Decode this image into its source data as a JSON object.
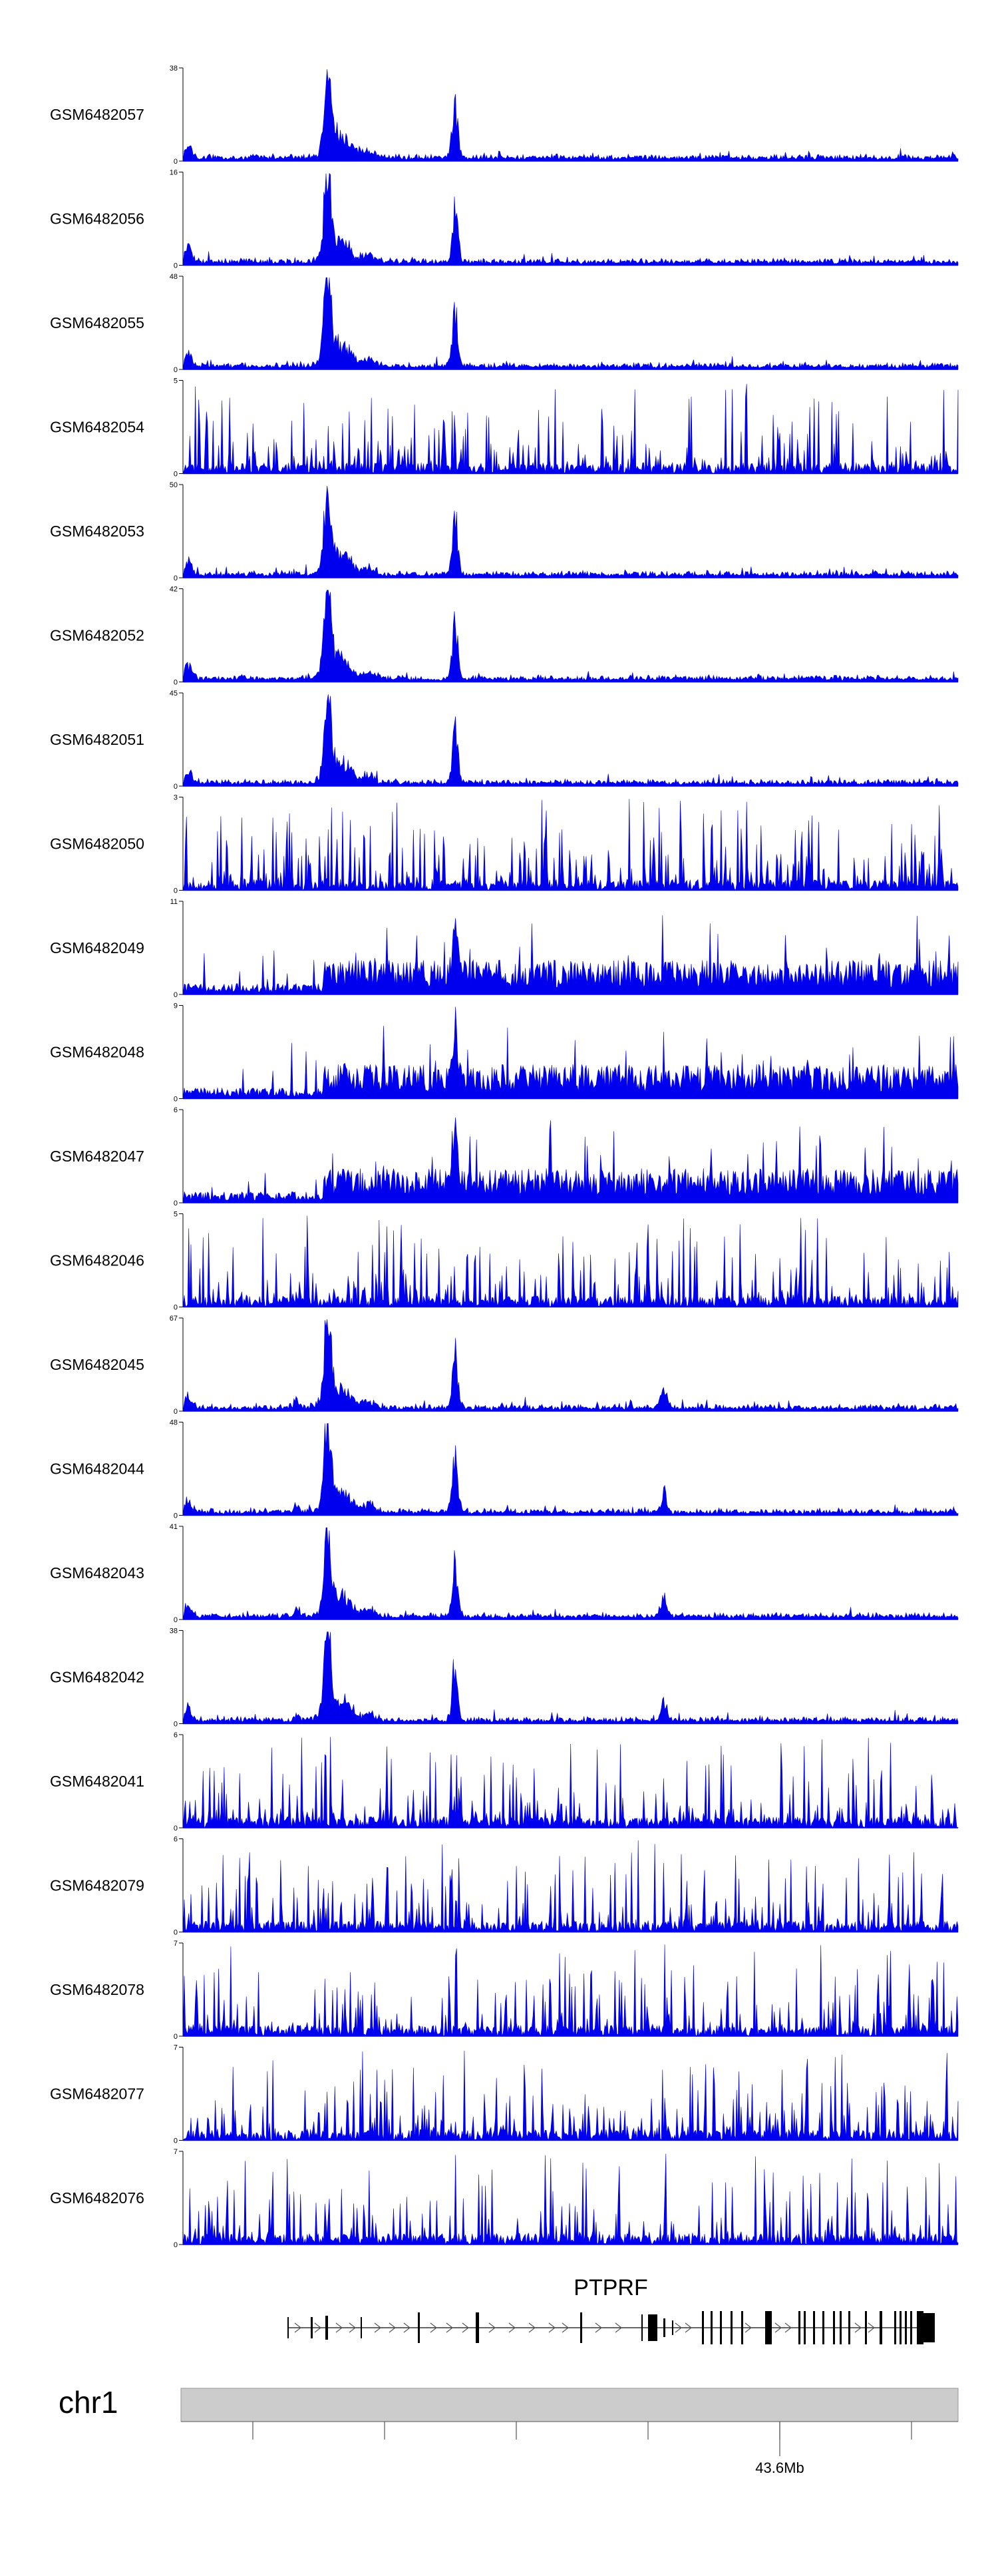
{
  "chart_data": {
    "type": "area",
    "color": "#0000ee",
    "x_range": [
      0,
      1
    ],
    "tracks": [
      {
        "name": "GSM6482057",
        "ymax": 38,
        "profile": "peaks"
      },
      {
        "name": "GSM6482056",
        "ymax": 16,
        "profile": "peaks"
      },
      {
        "name": "GSM6482055",
        "ymax": 48,
        "profile": "peaks"
      },
      {
        "name": "GSM6482054",
        "ymax": 5,
        "profile": "noise"
      },
      {
        "name": "GSM6482053",
        "ymax": 50,
        "profile": "peaks"
      },
      {
        "name": "GSM6482052",
        "ymax": 42,
        "profile": "peaks"
      },
      {
        "name": "GSM6482051",
        "ymax": 45,
        "profile": "peaks"
      },
      {
        "name": "GSM6482050",
        "ymax": 3,
        "profile": "noise"
      },
      {
        "name": "GSM6482049",
        "ymax": 11,
        "profile": "broad"
      },
      {
        "name": "GSM6482048",
        "ymax": 9,
        "profile": "broad"
      },
      {
        "name": "GSM6482047",
        "ymax": 6,
        "profile": "broad"
      },
      {
        "name": "GSM6482046",
        "ymax": 5,
        "profile": "noise"
      },
      {
        "name": "GSM6482045",
        "ymax": 67,
        "profile": "peaks3"
      },
      {
        "name": "GSM6482044",
        "ymax": 48,
        "profile": "peaks3"
      },
      {
        "name": "GSM6482043",
        "ymax": 41,
        "profile": "peaks3"
      },
      {
        "name": "GSM6482042",
        "ymax": 38,
        "profile": "peaks3"
      },
      {
        "name": "GSM6482041",
        "ymax": 6,
        "profile": "noise"
      },
      {
        "name": "GSM6482079",
        "ymax": 6,
        "profile": "noise"
      },
      {
        "name": "GSM6482078",
        "ymax": 7,
        "profile": "noise"
      },
      {
        "name": "GSM6482077",
        "ymax": 7,
        "profile": "noise"
      },
      {
        "name": "GSM6482076",
        "ymax": 7,
        "profile": "noise"
      }
    ],
    "ymin_label": "0",
    "gene": {
      "name": "PTPRF",
      "strand": "+"
    },
    "chromosome": {
      "name": "chr1",
      "position_label": "43.6Mb"
    }
  }
}
